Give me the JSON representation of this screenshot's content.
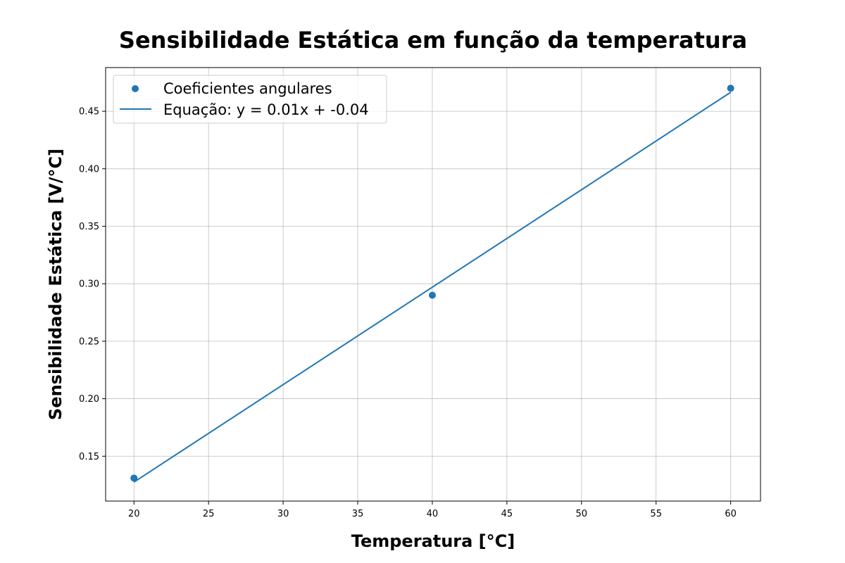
{
  "chart_data": {
    "type": "scatter",
    "title": "Sensibilidade Estática em função da temperatura",
    "xlabel": "Temperatura [°C]",
    "ylabel": "Sensibilidade Estática [V/°C]",
    "xlim": [
      18.1,
      62.0
    ],
    "ylim": [
      0.111,
      0.488
    ],
    "xticks": [
      20,
      25,
      30,
      35,
      40,
      45,
      50,
      55,
      60
    ],
    "xtick_labels": [
      "20",
      "25",
      "30",
      "35",
      "40",
      "45",
      "50",
      "55",
      "60"
    ],
    "yticks": [
      0.15,
      0.2,
      0.25,
      0.3,
      0.35,
      0.4,
      0.45
    ],
    "ytick_labels": [
      "0.15",
      "0.20",
      "0.25",
      "0.30",
      "0.35",
      "0.40",
      "0.45"
    ],
    "grid": true,
    "legend_position": "top-left",
    "series": [
      {
        "name": "Coeficientes angulares",
        "kind": "scatter",
        "color": "#1f77b4",
        "x": [
          20,
          40,
          60
        ],
        "y": [
          0.131,
          0.29,
          0.47
        ]
      },
      {
        "name": "Equação: y = 0.01x + -0.04",
        "kind": "line",
        "color": "#1f77b4",
        "x": [
          20,
          60
        ],
        "y": [
          0.1275,
          0.4665
        ]
      }
    ]
  }
}
